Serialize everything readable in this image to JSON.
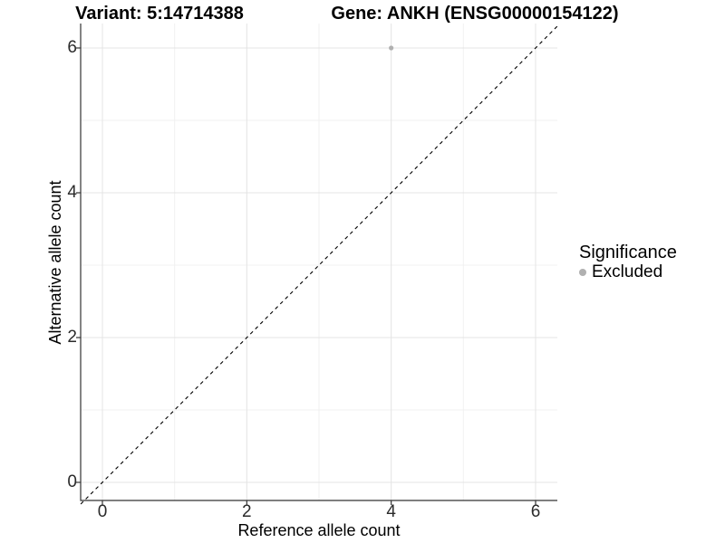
{
  "titles": {
    "variant": "Variant: 5:14714388",
    "gene": "Gene: ANKH (ENSG00000154122)"
  },
  "legend": {
    "title": "Significance",
    "items": [
      {
        "label": "Excluded",
        "color": "#b0b0b0"
      }
    ]
  },
  "chart_data": {
    "type": "scatter",
    "title_left": "Variant: 5:14714388",
    "title_right": "Gene: ANKH (ENSG00000154122)",
    "xlabel": "Reference allele count",
    "ylabel": "Alternative allele count",
    "xlim": [
      -0.3,
      6.3
    ],
    "ylim": [
      -0.3,
      6.3
    ],
    "x_ticks": [
      0,
      2,
      4,
      6
    ],
    "y_ticks": [
      0,
      2,
      4,
      6
    ],
    "minor_ticks_x": [
      1,
      3,
      5
    ],
    "minor_ticks_y": [
      1,
      3,
      5
    ],
    "grid": true,
    "legend_title": "Significance",
    "legend_position": "right",
    "series": [
      {
        "name": "Excluded",
        "color": "#b0b0b0",
        "marker": "circle",
        "points": [
          {
            "x": 4,
            "y": 6
          }
        ]
      }
    ],
    "reference_line": {
      "kind": "identity y=x",
      "style": "dashed",
      "color": "#000000"
    },
    "colors": {
      "background": "#ffffff",
      "grid_major": "#e4e4e4",
      "grid_minor": "#f1f1f1",
      "axis_line": "#333333",
      "tick_label": "#2b2b2b",
      "text": "#000000",
      "point": "#b0b0b0"
    }
  }
}
